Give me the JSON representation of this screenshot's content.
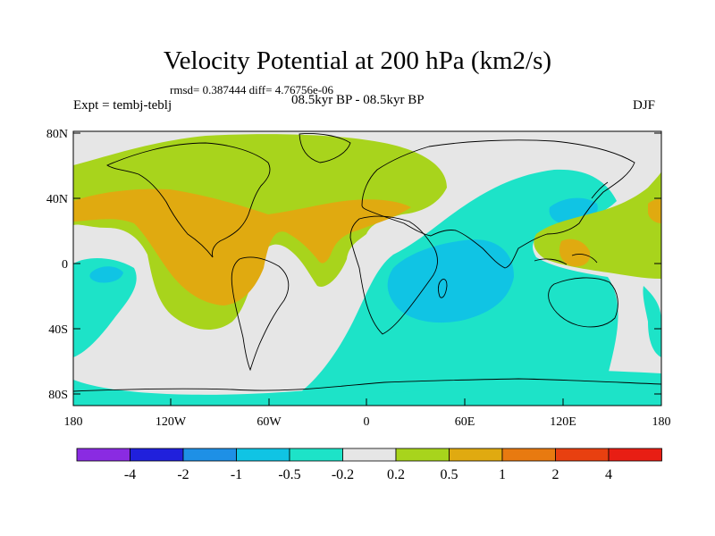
{
  "title": "Velocity Potential at 200 hPa (km2/s)",
  "stats_line": "rmsd= 0.387444  diff= 4.76756e-06",
  "experiment": "Expt = tembj-teblj",
  "period": "08.5kyr BP - 08.5kyr BP",
  "season": "DJF",
  "lat_labels": [
    "80N",
    "40N",
    "0",
    "40S",
    "80S"
  ],
  "lon_labels": [
    "180",
    "120W",
    "60W",
    "0",
    "60E",
    "120E",
    "180"
  ],
  "colorbar": {
    "labels": [
      "-4",
      "-2",
      "-1",
      "-0.5",
      "-0.2",
      "0.2",
      "0.5",
      "1",
      "2",
      "4"
    ],
    "colors": [
      "#8a2be2",
      "#2020dc",
      "#1e90e6",
      "#10c4e4",
      "#1de3c8",
      "#e6e6e6",
      "#a8d41c",
      "#e0aa10",
      "#e87a10",
      "#e84010",
      "#e81e14"
    ]
  },
  "field_colors": {
    "neutral": "#e6e6e6",
    "pos_weak": "#a8d41c",
    "pos_mid": "#e0aa10",
    "pos_strong": "#e87a10",
    "neg_weak": "#1de3c8",
    "neg_mid": "#10c4e4"
  }
}
